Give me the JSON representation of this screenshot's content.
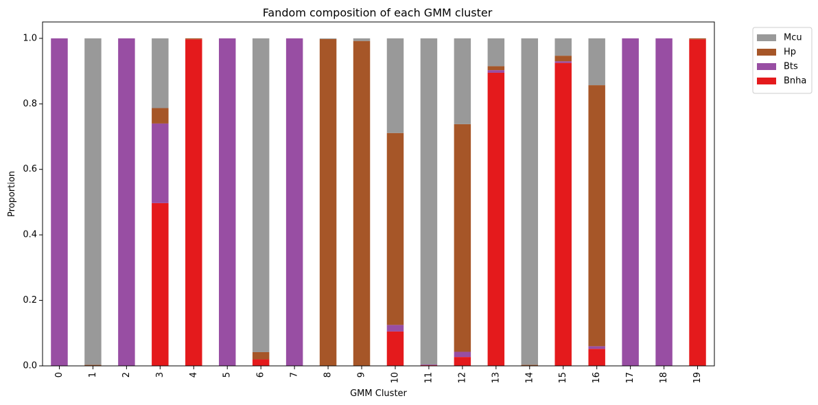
{
  "chart_data": {
    "type": "bar",
    "stacked": true,
    "title": "Fandom composition of each GMM cluster",
    "xlabel": "GMM Cluster",
    "ylabel": "Proportion",
    "ylim": [
      0,
      1.05
    ],
    "yticks": [
      0.0,
      0.2,
      0.4,
      0.6,
      0.8,
      1.0
    ],
    "ytick_labels": [
      "0.0",
      "0.2",
      "0.4",
      "0.6",
      "0.8",
      "1.0"
    ],
    "categories": [
      "0",
      "1",
      "2",
      "3",
      "4",
      "5",
      "6",
      "7",
      "8",
      "9",
      "10",
      "11",
      "12",
      "13",
      "14",
      "15",
      "16",
      "17",
      "18",
      "19"
    ],
    "legend_position": "outside-top-right",
    "grid": false,
    "series": [
      {
        "name": "Bnha",
        "color": "#e41a1c",
        "values": [
          0,
          0,
          0,
          0.497,
          0.997,
          0,
          0.02,
          0,
          0,
          0,
          0.105,
          0.002,
          0.027,
          0.895,
          0,
          0.925,
          0.052,
          0,
          0,
          0.997
        ]
      },
      {
        "name": "Bts",
        "color": "#984ea3",
        "values": [
          1.0,
          0,
          1.0,
          0.243,
          0,
          1.0,
          0,
          1.0,
          0,
          0,
          0.02,
          0.002,
          0.016,
          0.008,
          0,
          0.005,
          0.008,
          1.0,
          1.0,
          0
        ]
      },
      {
        "name": "Hp",
        "color": "#a65628",
        "values": [
          0,
          0.003,
          0,
          0.047,
          0.003,
          0,
          0.022,
          0,
          0.998,
          0.992,
          0.586,
          0,
          0.695,
          0.012,
          0.003,
          0.017,
          0.797,
          0,
          0,
          0.003
        ]
      },
      {
        "name": "Mcu",
        "color": "#999999",
        "values": [
          0,
          0.997,
          0,
          0.213,
          0,
          0,
          0.958,
          0,
          0.002,
          0.008,
          0.289,
          0.996,
          0.262,
          0.085,
          0.997,
          0.053,
          0.143,
          0,
          0,
          0
        ]
      }
    ],
    "legend_order": [
      "Mcu",
      "Hp",
      "Bts",
      "Bnha"
    ]
  }
}
